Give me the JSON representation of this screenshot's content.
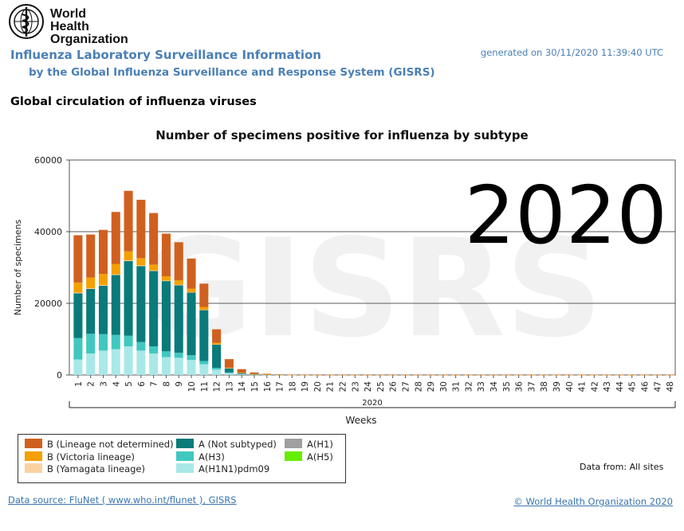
{
  "header": {
    "logo_text_line1": "World Health",
    "logo_text_line2": "Organization",
    "app_title": "Influenza Laboratory Surveillance Information",
    "app_subtitle": "by the Global Influenza Surveillance and Response System (GISRS)",
    "generated": "generated on 30/11/2020 11:39:40 UTC"
  },
  "page_title": "Global circulation of influenza viruses",
  "watermark": "GISRS",
  "chart_data": {
    "type": "bar",
    "stacked": true,
    "title": "Number of specimens positive for influenza by subtype",
    "xlabel": "Weeks",
    "ylabel": "Number of specimens",
    "ylim": [
      0,
      60000
    ],
    "yticks": [
      "0",
      "20000",
      "40000",
      "60000"
    ],
    "year_label": "2020",
    "big_year_label": "2020",
    "grid": true,
    "categories": [
      "1",
      "2",
      "3",
      "4",
      "5",
      "6",
      "7",
      "8",
      "9",
      "10",
      "11",
      "12",
      "13",
      "14",
      "15",
      "16",
      "17",
      "18",
      "19",
      "20",
      "21",
      "22",
      "23",
      "24",
      "25",
      "26",
      "27",
      "28",
      "29",
      "30",
      "31",
      "32",
      "33",
      "34",
      "35",
      "36",
      "37",
      "38",
      "39",
      "40",
      "41",
      "42",
      "43",
      "44",
      "45",
      "46",
      "47",
      "48"
    ],
    "series": [
      {
        "name": "A(H1N1)pdm09",
        "color": "#a9e8e8",
        "values": [
          4300,
          6000,
          6800,
          7200,
          8000,
          6800,
          6000,
          5000,
          4800,
          4200,
          3000,
          1500,
          500,
          200,
          80,
          40,
          20,
          10,
          10,
          5,
          5,
          5,
          5,
          5,
          5,
          5,
          5,
          5,
          5,
          5,
          5,
          5,
          5,
          5,
          5,
          5,
          5,
          5,
          5,
          5,
          5,
          5,
          5,
          5,
          5,
          5,
          5,
          5
        ]
      },
      {
        "name": "A(H3)",
        "color": "#40c8c0",
        "values": [
          6000,
          5500,
          4600,
          4000,
          3000,
          2400,
          2000,
          1600,
          1400,
          1300,
          900,
          500,
          200,
          80,
          30,
          15,
          10,
          5,
          5,
          5,
          5,
          5,
          5,
          5,
          5,
          5,
          5,
          5,
          5,
          5,
          5,
          5,
          5,
          5,
          5,
          5,
          5,
          5,
          5,
          5,
          5,
          5,
          5,
          5,
          5,
          5,
          5,
          5
        ]
      },
      {
        "name": "A(H5)",
        "color": "#66ee00",
        "values": [
          0,
          0,
          0,
          0,
          0,
          0,
          0,
          0,
          0,
          0,
          0,
          0,
          0,
          0,
          0,
          0,
          0,
          0,
          0,
          0,
          0,
          0,
          0,
          0,
          0,
          0,
          0,
          0,
          0,
          0,
          0,
          0,
          0,
          0,
          0,
          0,
          0,
          0,
          0,
          0,
          0,
          0,
          0,
          0,
          0,
          0,
          0,
          0
        ]
      },
      {
        "name": "A(H1)",
        "color": "#a0a0a0",
        "values": [
          0,
          0,
          0,
          0,
          0,
          0,
          0,
          0,
          0,
          0,
          0,
          0,
          0,
          0,
          0,
          0,
          0,
          0,
          0,
          0,
          0,
          0,
          0,
          0,
          0,
          0,
          0,
          0,
          0,
          0,
          0,
          0,
          0,
          0,
          0,
          0,
          0,
          0,
          0,
          0,
          0,
          0,
          0,
          0,
          0,
          0,
          0,
          0
        ]
      },
      {
        "name": "A (Not subtyped)",
        "color": "#0a7a7a",
        "values": [
          12500,
          12500,
          13500,
          16700,
          20800,
          21200,
          21000,
          19600,
          18800,
          17500,
          14200,
          6500,
          1200,
          300,
          120,
          60,
          40,
          20,
          10,
          10,
          10,
          10,
          10,
          10,
          10,
          10,
          10,
          10,
          10,
          10,
          10,
          10,
          10,
          10,
          10,
          10,
          10,
          10,
          10,
          10,
          10,
          10,
          10,
          10,
          10,
          10,
          10,
          10
        ]
      },
      {
        "name": "B (Yamagata lineage)",
        "color": "#fad2a0",
        "values": [
          200,
          200,
          200,
          200,
          200,
          200,
          200,
          150,
          150,
          100,
          100,
          50,
          20,
          10,
          5,
          5,
          5,
          5,
          5,
          5,
          5,
          5,
          5,
          5,
          5,
          5,
          5,
          5,
          5,
          5,
          5,
          5,
          5,
          5,
          5,
          5,
          5,
          5,
          5,
          5,
          5,
          5,
          5,
          5,
          5,
          5,
          5,
          5
        ]
      },
      {
        "name": "B (Victoria lineage)",
        "color": "#f5a000",
        "values": [
          2800,
          3000,
          3100,
          2900,
          2500,
          2000,
          1600,
          1200,
          1300,
          1000,
          800,
          400,
          100,
          40,
          15,
          10,
          5,
          5,
          5,
          5,
          5,
          5,
          5,
          5,
          5,
          5,
          5,
          5,
          5,
          5,
          5,
          5,
          5,
          5,
          5,
          5,
          5,
          5,
          5,
          5,
          5,
          5,
          5,
          5,
          5,
          5,
          5,
          5
        ]
      },
      {
        "name": "B (Lineage not determined)",
        "color": "#d06020",
        "values": [
          13200,
          12000,
          12300,
          14500,
          16900,
          16300,
          14400,
          11900,
          10600,
          8400,
          6500,
          3800,
          2400,
          1000,
          450,
          200,
          100,
          60,
          40,
          30,
          30,
          30,
          30,
          30,
          30,
          30,
          30,
          30,
          30,
          30,
          30,
          30,
          30,
          30,
          40,
          40,
          40,
          40,
          60,
          60,
          60,
          60,
          60,
          40,
          40,
          40,
          40,
          40
        ]
      }
    ],
    "legend_order": [
      "B (Lineage not determined)",
      "A (Not subtyped)",
      "A(H1)",
      "B (Victoria lineage)",
      "A(H3)",
      "A(H5)",
      "B (Yamagata lineage)",
      "A(H1N1)pdm09"
    ]
  },
  "footer": {
    "data_from": "Data from: All sites",
    "data_source": "Data source: FluNet ( www.who.int/flunet ), GISRS",
    "copyright": "© World Health Organization 2020"
  }
}
